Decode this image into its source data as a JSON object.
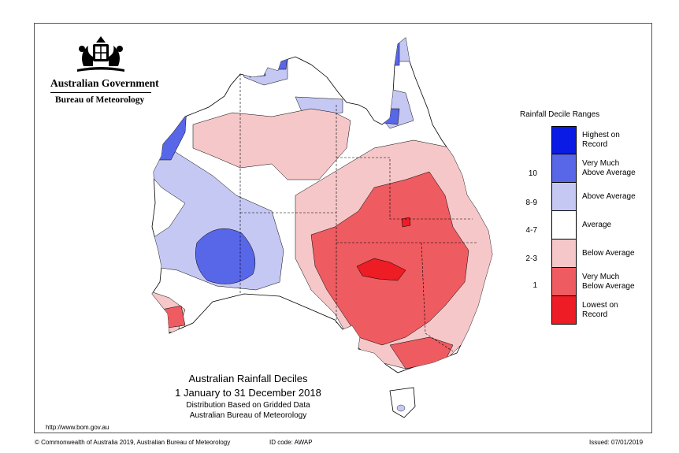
{
  "header": {
    "government": "Australian Government",
    "bureau": "Bureau of Meteorology",
    "logo_icon": "coat-of-arms-icon"
  },
  "map_title": {
    "line1": "Australian Rainfall Deciles",
    "line2": "1 January to 31 December 2018",
    "line3": "Distribution Based on Gridded Data",
    "line4": "Australian Bureau of Meteorology"
  },
  "url": "http://www.bom.gov.au",
  "footer": {
    "copyright": "© Commonwealth of Australia 2019, Australian Bureau of Meteorology",
    "id_code": "ID code: AWAP",
    "issued": "Issued: 07/01/2019"
  },
  "legend": {
    "title": "Rainfall Decile Ranges",
    "items": [
      {
        "line1": "Highest on",
        "line2": "Record",
        "color": "#0a1be6"
      },
      {
        "line1": "Very Much",
        "line2": "Above Average",
        "color": "#5866e8"
      },
      {
        "line1": "Above Average",
        "line2": "",
        "color": "#c6c8f4"
      },
      {
        "line1": "Average",
        "line2": "",
        "color": "#ffffff"
      },
      {
        "line1": "Below Average",
        "line2": "",
        "color": "#f6c7c9"
      },
      {
        "line1": "Very Much",
        "line2": "Below Average",
        "color": "#ee5b60"
      },
      {
        "line1": "Lowest on",
        "line2": "Record",
        "color": "#ee1c24"
      }
    ],
    "deciles": [
      "10",
      "8-9",
      "4-7",
      "2-3",
      "1"
    ]
  }
}
